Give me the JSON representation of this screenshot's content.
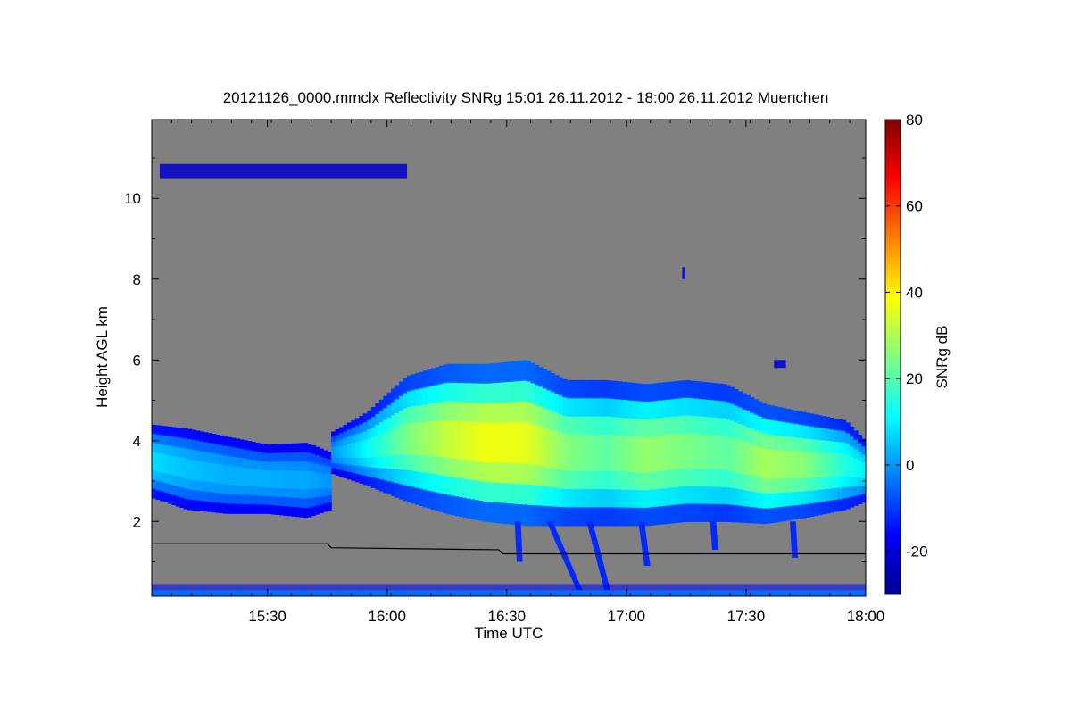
{
  "chart_data": {
    "type": "heatmap",
    "title": "20121126_0000.mmclx Reflectivity SNRg   15:01 26.11.2012 - 18:00 26.11.2012 Muenchen",
    "xlabel": "Time UTC",
    "ylabel": "Height AGL km",
    "x_range_min": [
      901,
      1080
    ],
    "y_range_km": [
      0.15,
      11.95
    ],
    "x_ticks": [
      {
        "label": "15:30",
        "min": 930
      },
      {
        "label": "16:00",
        "min": 960
      },
      {
        "label": "16:30",
        "min": 990
      },
      {
        "label": "17:00",
        "min": 1020
      },
      {
        "label": "17:30",
        "min": 1050
      },
      {
        "label": "18:00",
        "min": 1080
      }
    ],
    "y_ticks": [
      {
        "label": "2",
        "km": 2
      },
      {
        "label": "4",
        "km": 4
      },
      {
        "label": "6",
        "km": 6
      },
      {
        "label": "8",
        "km": 8
      },
      {
        "label": "10",
        "km": 10
      }
    ],
    "colorbar": {
      "label": "SNRg dB",
      "range": [
        -30,
        80
      ],
      "ticks": [
        {
          "label": "-20",
          "v": -20
        },
        {
          "label": "0",
          "v": 0
        },
        {
          "label": "20",
          "v": 20
        },
        {
          "label": "40",
          "v": 40
        },
        {
          "label": "60",
          "v": 60
        },
        {
          "label": "80",
          "v": 80
        }
      ],
      "colors": [
        "#00008f",
        "#0000ff",
        "#0080ff",
        "#00ffff",
        "#80ff80",
        "#ffff00",
        "#ff8000",
        "#ff0000",
        "#800000"
      ]
    },
    "background_color": "#808080",
    "cloud_bands": [
      {
        "t": [
          901,
          910,
          920,
          930,
          940,
          946
        ],
        "top_km": [
          4.4,
          4.3,
          4.1,
          3.9,
          3.95,
          3.7
        ],
        "base_km": [
          2.6,
          2.3,
          2.2,
          2.2,
          2.1,
          2.3
        ],
        "peak_db": [
          8,
          5,
          3,
          3,
          2,
          0
        ]
      },
      {
        "t": [
          946,
          955,
          965,
          975,
          985,
          995,
          1005,
          1015,
          1025,
          1035,
          1045,
          1055,
          1065,
          1075,
          1080
        ],
        "top_km": [
          4.2,
          4.7,
          5.6,
          5.9,
          5.9,
          6.0,
          5.5,
          5.5,
          5.4,
          5.5,
          5.4,
          4.9,
          4.7,
          4.5,
          4.0
        ],
        "base_km": [
          3.2,
          2.9,
          2.5,
          2.2,
          2.0,
          1.9,
          1.9,
          1.9,
          1.9,
          2.0,
          2.0,
          1.95,
          2.1,
          2.3,
          2.5
        ],
        "peak_db": [
          0,
          12,
          25,
          33,
          38,
          37,
          26,
          22,
          28,
          25,
          22,
          30,
          26,
          15,
          10
        ]
      }
    ],
    "fall_streaks": [
      {
        "t0": 992,
        "t1": 994,
        "top_km": 2.0,
        "base_km": 1.0
      },
      {
        "t0": 1000,
        "t1": 1009,
        "top_km": 2.0,
        "base_km": 0.3
      },
      {
        "t0": 1010,
        "t1": 1016,
        "top_km": 2.0,
        "base_km": 0.3
      },
      {
        "t0": 1023,
        "t1": 1026,
        "top_km": 2.0,
        "base_km": 0.9
      },
      {
        "t0": 1041,
        "t1": 1043,
        "top_km": 2.0,
        "base_km": 1.3
      },
      {
        "t0": 1061,
        "t1": 1063,
        "top_km": 2.0,
        "base_km": 1.1
      }
    ],
    "cirrus_patches": [
      {
        "t0": 903,
        "t1": 965,
        "top_km": 10.85,
        "base_km": 10.5
      },
      {
        "t0": 1034,
        "t1": 1034.8,
        "top_km": 8.3,
        "base_km": 8.0
      },
      {
        "t0": 1057,
        "t1": 1060,
        "top_km": 6.0,
        "base_km": 5.8
      }
    ],
    "boundary_line": {
      "t": [
        901,
        945,
        946,
        988,
        989,
        1080
      ],
      "km": [
        1.45,
        1.45,
        1.35,
        1.3,
        1.2,
        1.2
      ]
    },
    "ground_clutter_km": [
      0.15,
      0.45
    ]
  }
}
